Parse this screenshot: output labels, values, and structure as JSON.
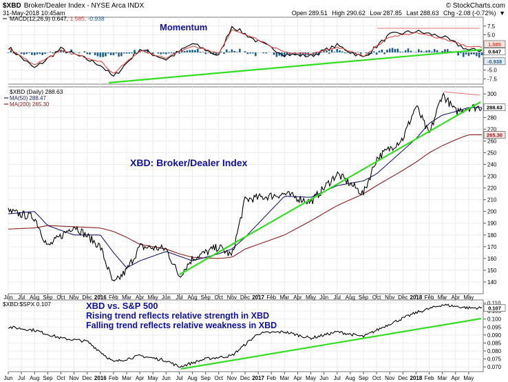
{
  "header": {
    "symbol": "$XBD",
    "name": "Broker/Dealer Index - NYSE Arca INDX",
    "date": "31-May-2018 10:45am",
    "open": "Open 289.51",
    "high": "High 290.62",
    "low": "Low 287.85",
    "last": "Last 288.63",
    "change": "Chg -2.08 (-0.72%)",
    "change_arrow": "▼",
    "credit": "© StockCharts.com"
  },
  "macd_panel": {
    "legend_name": "MACD(12,26,9)",
    "legend_macd": "0.647,",
    "legend_signal": "1.585,",
    "legend_hist": "-0.938",
    "annotation": "Momentum",
    "ticks": [
      "7.5",
      "5.0",
      "2.5",
      "0.0",
      "-2.5",
      "-5.0",
      "-7.5"
    ],
    "badges": [
      "1.585",
      "0.647",
      "-0.938"
    ]
  },
  "price_panel": {
    "legend_symbol": "$XBD (Daily) 288.63",
    "legend_ma50": "MA(50) 288.47",
    "legend_ma200": "MA(200) 265.30",
    "annotation": "XBD: Broker/Dealer Index",
    "ticks": [
      "300",
      "290",
      "280",
      "270",
      "260",
      "250",
      "240",
      "230",
      "220",
      "210",
      "200",
      "190",
      "180",
      "170",
      "160",
      "150",
      "140"
    ],
    "badges": [
      "288.63",
      "265.30"
    ]
  },
  "ratio_panel": {
    "legend": "$XBD:$SPX 0.107",
    "annotation_title": "XBD vs. S&P 500",
    "annotation_line1": "Rising trend reflects relative strength in XBD",
    "annotation_line2": "Falling trend reflects relative weakness in XBD",
    "ticks": [
      "0.110",
      "0.105",
      "0.100",
      "0.095",
      "0.090",
      "0.085",
      "0.080",
      "0.075",
      "0.070"
    ],
    "badge": "0.107"
  },
  "x_axis": {
    "labels": [
      "Jun",
      "Jul",
      "Aug",
      "Sep",
      "Oct",
      "Nov",
      "Dec",
      "2016",
      "Feb",
      "Mar",
      "Apr",
      "May",
      "Jun",
      "Jul",
      "Aug",
      "Sep",
      "Oct",
      "Nov",
      "Dec",
      "2017",
      "Feb",
      "Mar",
      "Apr",
      "May",
      "Jun",
      "Jul",
      "Aug",
      "Sep",
      "Oct",
      "Nov",
      "Dec",
      "2018",
      "Feb",
      "Mar",
      "Apr",
      "May"
    ],
    "bold": [
      "2016",
      "2017",
      "2018"
    ]
  },
  "colors": {
    "price": "#000000",
    "ma50": "#1a1a6e",
    "ma200": "#8b1a1a",
    "macd": "#000000",
    "signal": "#d9473f",
    "histogram": "#1f5f8b",
    "trendline": "#33dd22",
    "annotation": "#1010a0",
    "resistance": "#e87070"
  },
  "chart_data": [
    {
      "type": "line",
      "title": "MACD(12,26,9)",
      "x": [
        "2015-06",
        "2015-08",
        "2015-10",
        "2016-01",
        "2016-02",
        "2016-04",
        "2016-06",
        "2016-08",
        "2016-10",
        "2016-11",
        "2017-01",
        "2017-03",
        "2017-05",
        "2017-07",
        "2017-09",
        "2017-11",
        "2018-01",
        "2018-03",
        "2018-05"
      ],
      "series": [
        {
          "name": "MACD",
          "values": [
            1.5,
            -4.5,
            1.0,
            -3.5,
            -7.0,
            1.0,
            -2.0,
            2.5,
            -1.0,
            7.5,
            3.0,
            -0.5,
            -1.0,
            2.0,
            -1.5,
            5.0,
            6.0,
            4.5,
            0.647
          ]
        },
        {
          "name": "Signal",
          "values": [
            1.2,
            -3.5,
            0.5,
            -2.5,
            -6.0,
            0.5,
            -1.5,
            2.0,
            -0.5,
            6.5,
            3.5,
            0.0,
            -0.5,
            1.5,
            -1.0,
            4.5,
            5.5,
            4.0,
            1.585
          ]
        }
      ],
      "ylim": [
        -9,
        10
      ]
    },
    {
      "type": "line",
      "title": "XBD: Broker/Dealer Index",
      "x": [
        "2015-06",
        "2015-08",
        "2015-09",
        "2015-11",
        "2016-01",
        "2016-02",
        "2016-03",
        "2016-04",
        "2016-06",
        "2016-07",
        "2016-08",
        "2016-10",
        "2016-11",
        "2016-12",
        "2017-03",
        "2017-05",
        "2017-07",
        "2017-09",
        "2017-10",
        "2017-12",
        "2018-01",
        "2018-02",
        "2018-03",
        "2018-04",
        "2018-05"
      ],
      "series": [
        {
          "name": "$XBD",
          "values": [
            200,
            195,
            170,
            188,
            170,
            138,
            150,
            170,
            168,
            145,
            160,
            170,
            162,
            210,
            215,
            208,
            232,
            215,
            245,
            262,
            290,
            265,
            300,
            285,
            288.63
          ]
        },
        {
          "name": "MA(50)",
          "values": [
            198,
            200,
            188,
            180,
            180,
            165,
            152,
            158,
            166,
            162,
            158,
            164,
            168,
            178,
            213,
            212,
            222,
            226,
            232,
            252,
            262,
            275,
            282,
            285,
            288.47
          ]
        },
        {
          "name": "MA(200)",
          "values": [
            185,
            186,
            188,
            187,
            186,
            183,
            178,
            172,
            168,
            164,
            161,
            160,
            161,
            168,
            180,
            192,
            205,
            215,
            222,
            235,
            242,
            250,
            256,
            261,
            265.3
          ]
        }
      ],
      "ylim": [
        130,
        306
      ]
    },
    {
      "type": "line",
      "title": "$XBD:$SPX",
      "x": [
        "2015-06",
        "2015-08",
        "2015-10",
        "2015-12",
        "2016-02",
        "2016-04",
        "2016-06",
        "2016-07",
        "2016-09",
        "2016-11",
        "2017-01",
        "2017-03",
        "2017-05",
        "2017-07",
        "2017-09",
        "2017-11",
        "2018-01",
        "2018-03",
        "2018-05"
      ],
      "series": [
        {
          "name": "$XBD:$SPX",
          "values": [
            0.095,
            0.093,
            0.088,
            0.086,
            0.073,
            0.077,
            0.074,
            0.07,
            0.075,
            0.077,
            0.091,
            0.092,
            0.088,
            0.092,
            0.089,
            0.097,
            0.104,
            0.109,
            0.107
          ]
        }
      ],
      "ylim": [
        0.067,
        0.112
      ]
    }
  ]
}
